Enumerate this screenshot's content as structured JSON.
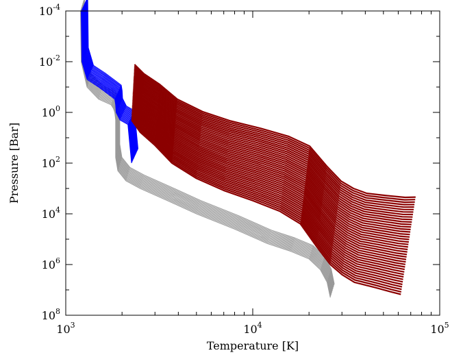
{
  "chart_data": {
    "type": "area",
    "title": "",
    "xlabel": "Temperature [K]",
    "ylabel": "Pressure [Bar]",
    "x_scale": "log",
    "y_scale": "log",
    "y_inverted": true,
    "xlim": [
      1000,
      100000
    ],
    "ylim": [
      0.0001,
      100000000
    ],
    "grid": false,
    "x_ticks": [
      {
        "base": "10",
        "exp": "3",
        "value": 1000
      },
      {
        "base": "10",
        "exp": "4",
        "value": 10000
      },
      {
        "base": "10",
        "exp": "5",
        "value": 100000
      }
    ],
    "y_ticks": [
      {
        "base": "10",
        "exp": "-4",
        "value": 0.0001
      },
      {
        "base": "10",
        "exp": "-2",
        "value": 0.01
      },
      {
        "base": "10",
        "exp": "0",
        "value": 1
      },
      {
        "base": "10",
        "exp": "2",
        "value": 100
      },
      {
        "base": "10",
        "exp": "4",
        "value": 10000
      },
      {
        "base": "10",
        "exp": "6",
        "value": 1000000
      },
      {
        "base": "10",
        "exp": "8",
        "value": 100000000
      }
    ],
    "series": [
      {
        "color": "#999999",
        "points": [
          [
            1200,
            0.0001
          ],
          [
            1210,
            0.01
          ],
          [
            1300,
            0.1
          ],
          [
            1500,
            0.3
          ],
          [
            1750,
            0.5
          ],
          [
            1800,
            0.7
          ],
          [
            1830,
            1.0
          ],
          [
            1850,
            2.0
          ],
          [
            1850,
            10
          ],
          [
            1850,
            60
          ],
          [
            1900,
            200
          ],
          [
            2100,
            500
          ],
          [
            2500,
            1000
          ],
          [
            3500,
            3000
          ],
          [
            5000,
            10000
          ],
          [
            8000,
            40000
          ],
          [
            12000,
            150000
          ],
          [
            16000,
            300000
          ],
          [
            20000,
            600000
          ],
          [
            23000,
            1600000
          ],
          [
            25000,
            5000000
          ],
          [
            26000,
            20000000
          ]
        ]
      },
      {
        "color": "#0000ff",
        "points": [
          [
            1210,
            0.0001
          ],
          [
            1220,
            0.01
          ],
          [
            1300,
            0.05
          ],
          [
            1500,
            0.1
          ],
          [
            1700,
            0.2
          ],
          [
            1830,
            0.3
          ],
          [
            1850,
            0.5
          ],
          [
            1860,
            1.0
          ],
          [
            1950,
            2.0
          ],
          [
            2150,
            3.0
          ],
          [
            2250,
            100
          ]
        ]
      },
      {
        "color": "#8b0000",
        "points": [
          [
            2250,
            2.0
          ],
          [
            2500,
            6.0
          ],
          [
            3000,
            20
          ],
          [
            3700,
            100
          ],
          [
            5000,
            400
          ],
          [
            7000,
            1200
          ],
          [
            10000,
            3000
          ],
          [
            14000,
            8000
          ],
          [
            18000,
            25000
          ],
          [
            22000,
            200000
          ],
          [
            26000,
            1000000
          ],
          [
            30000,
            2500000
          ],
          [
            35000,
            5000000
          ],
          [
            45000,
            8000000
          ],
          [
            55000,
            12000000
          ],
          [
            62000,
            15000000
          ]
        ]
      }
    ]
  }
}
